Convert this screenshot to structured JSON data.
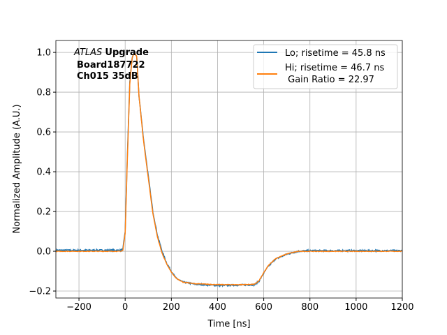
{
  "chart_data": {
    "type": "line",
    "xlabel": "Time [ns]",
    "ylabel": "Normalized Amplitude (A.U.)",
    "xlim": [
      -300,
      1200
    ],
    "ylim": [
      -0.235,
      1.06
    ],
    "grid": true,
    "xticks": [
      -200,
      0,
      200,
      400,
      600,
      800,
      1000,
      1200
    ],
    "yticks": [
      -0.2,
      0.0,
      0.2,
      0.4,
      0.6,
      0.8,
      1.0
    ],
    "xtick_labels": [
      "−200",
      "0",
      "200",
      "400",
      "600",
      "800",
      "1000",
      "1200"
    ],
    "ytick_labels": [
      "−0.2",
      "0.0",
      "0.2",
      "0.4",
      "0.6",
      "0.8",
      "1.0"
    ],
    "annotation": {
      "italic": "ATLAS",
      "bold": "Upgrade",
      "line2": "Board187722",
      "line3": "Ch015 35dB"
    },
    "legend_placement": "upper right",
    "series": [
      {
        "name": "Lo; risetime = 45.8 ns",
        "color": "#1f77b4",
        "x": [
          -300,
          -20,
          -10,
          0,
          10,
          20,
          30,
          40,
          50,
          60,
          80,
          100,
          120,
          140,
          160,
          180,
          200,
          220,
          250,
          300,
          400,
          500,
          560,
          580,
          600,
          620,
          650,
          700,
          750,
          800,
          1200
        ],
        "y": [
          0.005,
          0.005,
          0.01,
          0.1,
          0.5,
          0.85,
          0.97,
          1.0,
          0.98,
          0.78,
          0.56,
          0.38,
          0.2,
          0.08,
          0.0,
          -0.06,
          -0.1,
          -0.135,
          -0.155,
          -0.165,
          -0.172,
          -0.17,
          -0.168,
          -0.15,
          -0.11,
          -0.075,
          -0.04,
          -0.015,
          0.0,
          0.003,
          0.003
        ]
      },
      {
        "name": "Hi; risetime = 46.7 ns",
        "name2": " Gain Ratio = 22.97",
        "color": "#ff7f0e",
        "x": [
          -300,
          -20,
          -10,
          0,
          10,
          20,
          30,
          40,
          50,
          60,
          80,
          100,
          120,
          140,
          160,
          180,
          200,
          220,
          250,
          300,
          400,
          500,
          560,
          580,
          600,
          620,
          650,
          700,
          750,
          800,
          1200
        ],
        "y": [
          0.0,
          0.0,
          0.005,
          0.09,
          0.48,
          0.84,
          0.97,
          1.0,
          0.98,
          0.78,
          0.55,
          0.37,
          0.19,
          0.07,
          -0.01,
          -0.065,
          -0.105,
          -0.135,
          -0.155,
          -0.163,
          -0.168,
          -0.168,
          -0.166,
          -0.148,
          -0.108,
          -0.072,
          -0.038,
          -0.013,
          0.0,
          0.0,
          0.0
        ]
      }
    ]
  }
}
